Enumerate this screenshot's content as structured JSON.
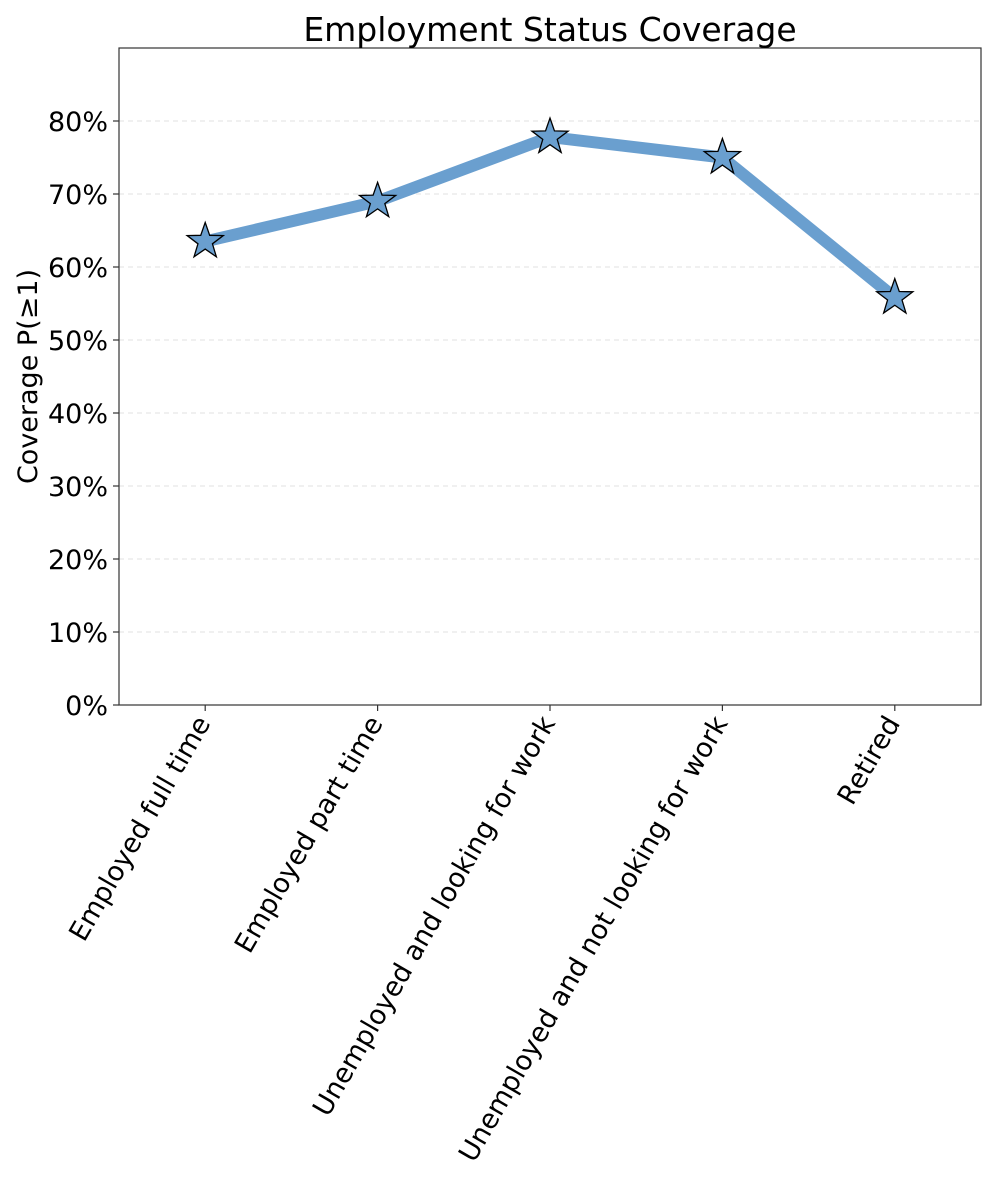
{
  "chart_data": {
    "type": "line",
    "title": "Employment Status Coverage",
    "xlabel": "",
    "ylabel": "Coverage P(≥1)",
    "categories": [
      "Employed full time",
      "Employed part time",
      "Unemployed and looking for work",
      "Unemployed and not looking for work",
      "Retired"
    ],
    "series": [
      {
        "values": [
          0.635,
          0.69,
          0.778,
          0.75,
          0.558
        ],
        "color": "#6a9fcf",
        "marker": "star"
      }
    ],
    "ylim": [
      0,
      0.9
    ],
    "yticks": [
      0,
      0.1,
      0.2,
      0.3,
      0.4,
      0.5,
      0.6,
      0.7,
      0.8
    ],
    "ytick_labels": [
      "0%",
      "10%",
      "20%",
      "30%",
      "40%",
      "50%",
      "60%",
      "70%",
      "80%"
    ],
    "grid": "horizontal-dashed",
    "legend": "none"
  }
}
